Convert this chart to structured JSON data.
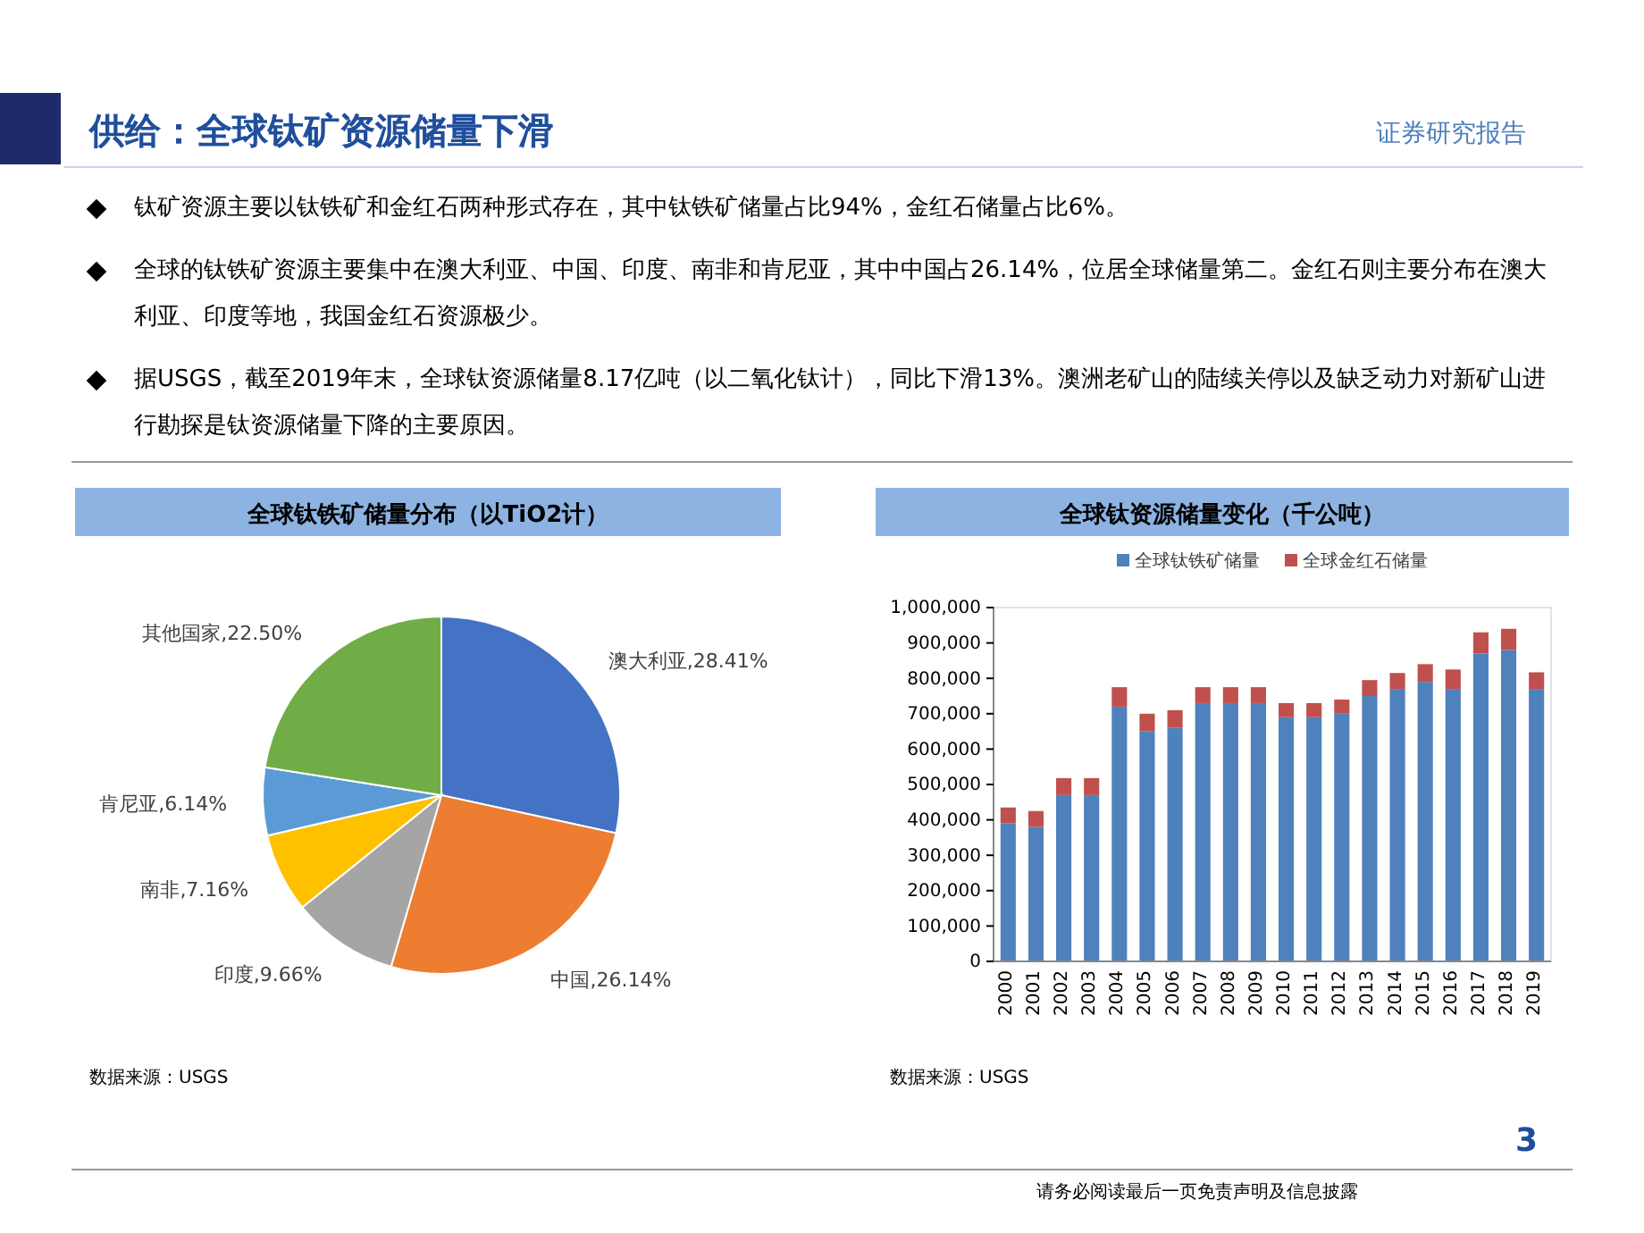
{
  "chart_data": [
    {
      "type": "other",
      "title": "供给：全球钛矿资源储量下滑",
      "annotations": [
        "证券研究报告",
        "钛矿资源主要以钛铁矿和金红石两种形式存在，其中钛铁矿储量占比94%，金红石储量占比6%。",
        "全球的钛铁矿资源主要集中在澳大利亚、中国、印度、南非和肯尼亚，其中中国占26.14%，位居全球储量第二。金红石则主要分布在澳大利亚、印度等地，我国金红石资源极少。",
        "据USGS，截至2019年末，全球钛资源储量8.17亿吨（以二氧化钛计），同比下滑13%。澳洲老矿山的陆续关停以及缺乏动力对新矿山进行勘探是钛资源储量下降的主要原因。",
        "3",
        "请务必阅读最后一页免责声明及信息披露"
      ]
    },
    {
      "type": "pie",
      "title": "全球钛铁矿储量分布（以TiO2计）",
      "categories": [
        "澳大利亚",
        "中国",
        "印度",
        "南非",
        "肯尼亚",
        "其他国家"
      ],
      "values": [
        28.41,
        26.14,
        9.66,
        7.16,
        6.14,
        22.5
      ],
      "value_labels": [
        "28.41%",
        "26.14%",
        "9.66%",
        "7.16%",
        "6.14%",
        "22.50%"
      ],
      "colors": [
        "#4472c4",
        "#ed7d31",
        "#a5a5a5",
        "#ffc000",
        "#5b9bd5",
        "#70ad47"
      ],
      "annotations": [
        "数据来源：USGS"
      ]
    },
    {
      "type": "bar",
      "title": "全球钛资源储量变化（千公吨）",
      "stacked": true,
      "legend": "top",
      "grid": false,
      "categories": [
        "2000",
        "2001",
        "2002",
        "2003",
        "2004",
        "2005",
        "2006",
        "2007",
        "2008",
        "2009",
        "2010",
        "2011",
        "2012",
        "2013",
        "2014",
        "2015",
        "2016",
        "2017",
        "2018",
        "2019"
      ],
      "series": [
        {
          "name": "全球钛铁矿储量",
          "color": "#4f81bd",
          "values": [
            390000,
            380000,
            470000,
            470000,
            720000,
            650000,
            660000,
            730000,
            730000,
            730000,
            690000,
            690000,
            700000,
            750000,
            770000,
            790000,
            770000,
            870000,
            880000,
            770000
          ]
        },
        {
          "name": "全球金红石储量",
          "color": "#c0504d",
          "values": [
            45000,
            45000,
            48000,
            48000,
            55000,
            50000,
            50000,
            45000,
            45000,
            45000,
            40000,
            40000,
            40000,
            45000,
            45000,
            50000,
            55000,
            60000,
            60000,
            47000
          ]
        }
      ],
      "ylim": [
        0,
        1000000
      ],
      "yticks": [
        {
          "value": 0,
          "label": "0"
        },
        {
          "value": 100000,
          "label": "100,000"
        },
        {
          "value": 200000,
          "label": "200,000"
        },
        {
          "value": 300000,
          "label": "300,000"
        },
        {
          "value": 400000,
          "label": "400,000"
        },
        {
          "value": 500000,
          "label": "500,000"
        },
        {
          "value": 600000,
          "label": "600,000"
        },
        {
          "value": 700000,
          "label": "700,000"
        },
        {
          "value": 800000,
          "label": "800,000"
        },
        {
          "value": 900000,
          "label": "900,000"
        },
        {
          "value": 1000000,
          "label": "1,000,000"
        }
      ],
      "annotations": [
        "数据来源：USGS"
      ]
    }
  ]
}
